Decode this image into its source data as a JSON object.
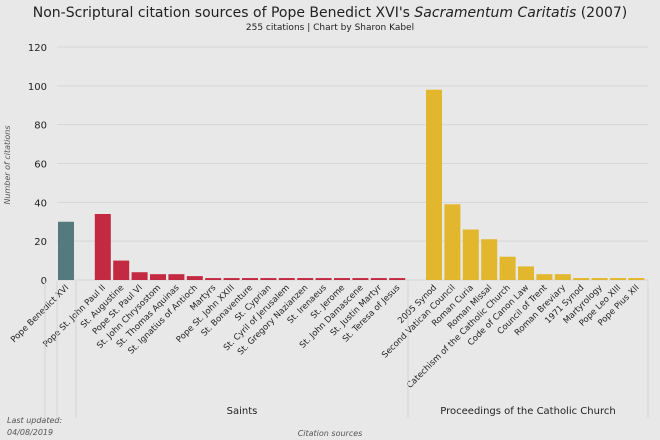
{
  "chart_data": {
    "type": "bar",
    "title_prefix": "Non-Scriptural citation sources of Pope Benedict XVI's ",
    "title_italic": "Sacramentum Caritatis",
    "title_suffix": " (2007)",
    "subtitle": "255 citations | Chart by Sharon Kabel",
    "xlabel": "Citation sources",
    "ylabel": "Number of citations",
    "ylim": [
      0,
      120
    ],
    "yticks": [
      0,
      20,
      40,
      60,
      80,
      100,
      120
    ],
    "grid": true,
    "footnote": [
      "Last updated:",
      "04/08/2019"
    ],
    "groups": [
      {
        "name": "",
        "color": "#537b7e",
        "categories": [
          "Pope Benedict XVI"
        ],
        "values": [
          30
        ]
      },
      {
        "name": "Saints",
        "color": "#c32a42",
        "categories": [
          "Pope St. John Paul II",
          "St. Augustine",
          "Pope St. Paul VI",
          "St. John Chrysostom",
          "St. Thomas Aquinas",
          "St. Ignatius  of Antioch",
          "Martyrs",
          "Pope St. John XXIII",
          "St. Bonaventure",
          "St. Cyprian",
          "St. Cyril of Jerusalem",
          "St. Gregory Nazianzen",
          "St. Irenaeus",
          "St. Jerome",
          "St. John Damascene",
          "St. Justin Martyr",
          "St. Teresa of Jesus"
        ],
        "values": [
          34,
          10,
          4,
          3,
          3,
          2,
          1,
          1,
          1,
          1,
          1,
          1,
          1,
          1,
          1,
          1,
          1
        ]
      },
      {
        "name": "Proceedings of the Catholic Church",
        "color": "#e2b72e",
        "categories": [
          "2005 Synod",
          "Second Vatican Council",
          "Roman Curia",
          "Roman Missal",
          "Catechism of the Catholic Church",
          "Code of Canon Law",
          "Council of Trent",
          "Roman Breviary",
          "1971 Synod",
          "Martyrology",
          "Pope Leo XIII",
          "Pope Pius XII"
        ],
        "values": [
          98,
          39,
          26,
          21,
          12,
          7,
          3,
          3,
          1,
          1,
          1,
          1
        ]
      }
    ]
  }
}
